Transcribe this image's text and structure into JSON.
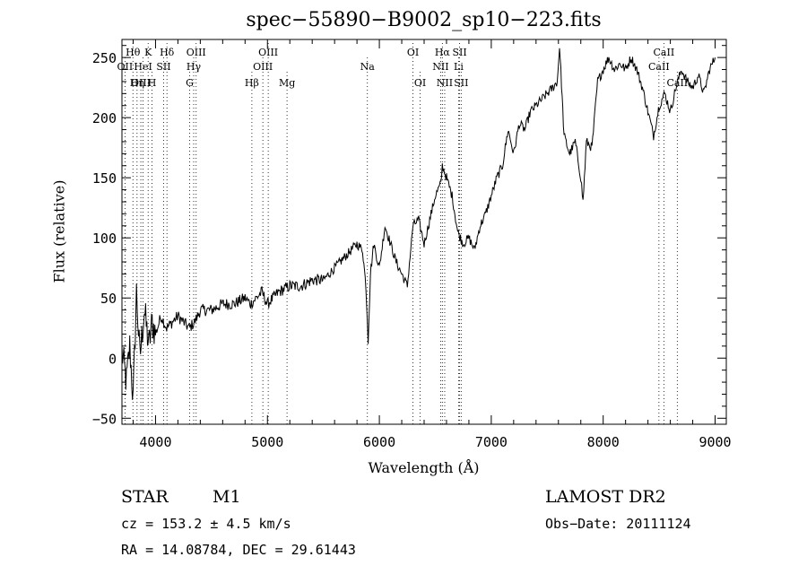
{
  "chart_data": {
    "type": "line",
    "title": "spec−55890−B9002_sp10−223.fits",
    "xlabel": "Wavelength (Å)",
    "ylabel": "Flux (relative)",
    "xlim": [
      3700,
      9100
    ],
    "ylim": [
      -55,
      265
    ],
    "grid": false,
    "x_ticks": [
      {
        "v": 4000,
        "label": "4000"
      },
      {
        "v": 5000,
        "label": "5000"
      },
      {
        "v": 6000,
        "label": "6000"
      },
      {
        "v": 7000,
        "label": "7000"
      },
      {
        "v": 8000,
        "label": "8000"
      },
      {
        "v": 9000,
        "label": "9000"
      }
    ],
    "y_ticks": [
      {
        "v": -50,
        "label": "−50"
      },
      {
        "v": 0,
        "label": "0"
      },
      {
        "v": 50,
        "label": "50"
      },
      {
        "v": 100,
        "label": "100"
      },
      {
        "v": 150,
        "label": "150"
      },
      {
        "v": 200,
        "label": "200"
      },
      {
        "v": 250,
        "label": "250"
      }
    ],
    "series": [
      {
        "x": [
          3700,
          3740,
          3770,
          3800,
          3830,
          3860,
          3900,
          3940,
          3970,
          4000,
          4050,
          4100,
          4150,
          4200,
          4250,
          4300,
          4350,
          4400,
          4500,
          4600,
          4700,
          4800,
          4850,
          4900,
          4950,
          5000,
          5100,
          5200,
          5300,
          5400,
          5500,
          5600,
          5700,
          5750,
          5800,
          5850,
          5880,
          5900,
          5920,
          5950,
          6000,
          6050,
          6100,
          6150,
          6200,
          6250,
          6300,
          6350,
          6400,
          6450,
          6500,
          6550,
          6563,
          6600,
          6650,
          6700,
          6750,
          6800,
          6850,
          6900,
          6950,
          7000,
          7050,
          7100,
          7150,
          7200,
          7250,
          7300,
          7350,
          7400,
          7450,
          7500,
          7550,
          7590,
          7610,
          7650,
          7700,
          7750,
          7800,
          7820,
          7850,
          7900,
          7950,
          8000,
          8050,
          8100,
          8150,
          8200,
          8250,
          8300,
          8350,
          8400,
          8450,
          8500,
          8550,
          8600,
          8650,
          8700,
          8750,
          8800,
          8850,
          8900,
          8950,
          9000
        ],
        "y": [
          5,
          -20,
          10,
          -35,
          55,
          0,
          40,
          10,
          30,
          20,
          35,
          25,
          30,
          35,
          30,
          25,
          30,
          40,
          40,
          45,
          45,
          50,
          45,
          50,
          55,
          45,
          55,
          60,
          60,
          65,
          65,
          75,
          85,
          90,
          95,
          90,
          60,
          15,
          70,
          95,
          75,
          110,
          95,
          80,
          70,
          60,
          110,
          115,
          95,
          115,
          135,
          145,
          160,
          150,
          135,
          105,
          95,
          100,
          90,
          110,
          120,
          135,
          150,
          160,
          190,
          170,
          195,
          190,
          205,
          210,
          215,
          220,
          225,
          230,
          260,
          185,
          170,
          180,
          150,
          130,
          180,
          175,
          230,
          240,
          250,
          240,
          245,
          240,
          250,
          240,
          225,
          205,
          185,
          210,
          220,
          205,
          225,
          240,
          230,
          225,
          235,
          220,
          240,
          250
        ]
      }
    ],
    "line_markers": [
      {
        "label": "Hθ",
        "x": 3798,
        "row": 0
      },
      {
        "label": "OII",
        "x": 3727,
        "row": 1
      },
      {
        "label": "OIII",
        "x": 3869,
        "row": 2
      },
      {
        "label": "K",
        "x": 3934,
        "row": 0
      },
      {
        "label": "Hη",
        "x": 3835,
        "row": 2
      },
      {
        "label": "HeI",
        "x": 3889,
        "row": 1
      },
      {
        "label": "H",
        "x": 3969,
        "row": 2
      },
      {
        "label": "SII",
        "x": 4072,
        "row": 1
      },
      {
        "label": "Hδ",
        "x": 4102,
        "row": 0
      },
      {
        "label": "OIII",
        "x": 4363,
        "row": 0
      },
      {
        "label": "Hγ",
        "x": 4341,
        "row": 1
      },
      {
        "label": "G",
        "x": 4305,
        "row": 2
      },
      {
        "label": "Hβ",
        "x": 4861,
        "row": 2
      },
      {
        "label": "OIII",
        "x": 5007,
        "row": 0
      },
      {
        "label": "OIII",
        "x": 4959,
        "row": 1
      },
      {
        "label": "Mg",
        "x": 5175,
        "row": 2
      },
      {
        "label": "Na",
        "x": 5893,
        "row": 1
      },
      {
        "label": "OI",
        "x": 6300,
        "row": 0
      },
      {
        "label": "OI",
        "x": 6364,
        "row": 2
      },
      {
        "label": "Hα",
        "x": 6563,
        "row": 0
      },
      {
        "label": "NII",
        "x": 6548,
        "row": 1
      },
      {
        "label": "NII",
        "x": 6584,
        "row": 2
      },
      {
        "label": "SII",
        "x": 6717,
        "row": 0
      },
      {
        "label": "Li",
        "x": 6708,
        "row": 1
      },
      {
        "label": "SII",
        "x": 6731,
        "row": 2
      },
      {
        "label": "CaII",
        "x": 8542,
        "row": 0
      },
      {
        "label": "CaII",
        "x": 8498,
        "row": 1
      },
      {
        "label": "CaII",
        "x": 8662,
        "row": 2
      }
    ]
  },
  "info": {
    "object_class": "STAR",
    "subclass": "M1",
    "survey": "LAMOST DR2",
    "cz": "cz = 153.2 ± 4.5 km/s",
    "obs_date": "Obs−Date: 20111124",
    "coords": "RA =  14.08784, DEC =  29.61443"
  }
}
